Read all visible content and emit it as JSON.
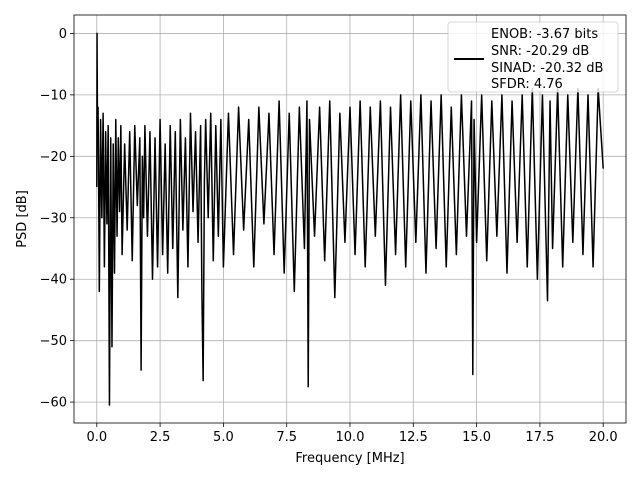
{
  "chart_data": {
    "type": "line",
    "title": "",
    "xlabel": "Frequency [MHz]",
    "ylabel": "PSD [dB]",
    "xlim": [
      -0.9,
      20.9
    ],
    "ylim": [
      -63.4,
      3.0
    ],
    "xticks": [
      0.0,
      2.5,
      5.0,
      7.5,
      10.0,
      12.5,
      15.0,
      17.5,
      20.0
    ],
    "xtick_labels": [
      "0.0",
      "2.5",
      "5.0",
      "7.5",
      "10.0",
      "12.5",
      "15.0",
      "17.5",
      "20.0"
    ],
    "yticks": [
      0,
      -10,
      -20,
      -30,
      -40,
      -50,
      -60
    ],
    "ytick_labels": [
      "0",
      "−10",
      "−20",
      "−30",
      "−40",
      "−50",
      "−60"
    ],
    "grid": true,
    "legend_position": "upper right",
    "line_color": "#000000",
    "series": [
      {
        "name": "",
        "x": [
          0.0,
          0.01,
          0.03,
          0.05,
          0.07,
          0.1,
          0.15,
          0.2,
          0.25,
          0.3,
          0.35,
          0.4,
          0.45,
          0.5,
          0.55,
          0.6,
          0.65,
          0.7,
          0.75,
          0.8,
          0.85,
          0.9,
          0.95,
          1.0,
          1.1,
          1.2,
          1.3,
          1.4,
          1.5,
          1.6,
          1.7,
          1.75,
          1.8,
          1.85,
          1.9,
          2.0,
          2.1,
          2.2,
          2.3,
          2.4,
          2.5,
          2.6,
          2.7,
          2.8,
          2.9,
          3.0,
          3.1,
          3.2,
          3.3,
          3.4,
          3.5,
          3.6,
          3.7,
          3.8,
          3.9,
          4.0,
          4.1,
          4.15,
          4.2,
          4.25,
          4.3,
          4.4,
          4.5,
          4.6,
          4.7,
          4.8,
          4.9,
          5.0,
          5.2,
          5.4,
          5.6,
          5.8,
          6.0,
          6.2,
          6.4,
          6.6,
          6.8,
          7.0,
          7.2,
          7.4,
          7.6,
          7.8,
          8.0,
          8.2,
          8.3,
          8.35,
          8.4,
          8.6,
          8.8,
          9.0,
          9.2,
          9.4,
          9.6,
          9.8,
          10.0,
          10.2,
          10.4,
          10.6,
          10.8,
          11.0,
          11.2,
          11.4,
          11.6,
          11.8,
          12.0,
          12.2,
          12.4,
          12.6,
          12.8,
          13.0,
          13.2,
          13.4,
          13.6,
          13.8,
          14.0,
          14.2,
          14.4,
          14.6,
          14.8,
          14.85,
          14.9,
          15.0,
          15.2,
          15.4,
          15.6,
          15.8,
          16.0,
          16.2,
          16.4,
          16.6,
          16.8,
          17.0,
          17.2,
          17.4,
          17.6,
          17.8,
          17.9,
          18.0,
          18.2,
          18.4,
          18.6,
          18.8,
          19.0,
          19.2,
          19.4,
          19.6,
          19.8,
          20.0
        ],
        "y": [
          -25.0,
          0.0,
          -18.0,
          -12.0,
          -22.0,
          -42.0,
          -14.0,
          -30.0,
          -13.0,
          -38.0,
          -16.0,
          -31.0,
          -15.0,
          -60.5,
          -17.0,
          -51.0,
          -18.0,
          -39.0,
          -14.0,
          -33.0,
          -17.0,
          -29.0,
          -15.0,
          -36.0,
          -18.0,
          -32.0,
          -16.0,
          -37.0,
          -15.0,
          -28.0,
          -17.0,
          -54.8,
          -20.0,
          -30.0,
          -15.0,
          -33.0,
          -16.0,
          -40.0,
          -17.0,
          -38.0,
          -14.0,
          -36.0,
          -18.0,
          -39.0,
          -15.0,
          -35.0,
          -16.0,
          -43.0,
          -14.0,
          -32.0,
          -17.0,
          -38.0,
          -13.0,
          -29.0,
          -16.0,
          -34.0,
          -15.0,
          -42.0,
          -56.5,
          -24.0,
          -14.0,
          -30.0,
          -13.0,
          -37.0,
          -15.0,
          -33.0,
          -14.0,
          -38.0,
          -13.0,
          -36.0,
          -12.0,
          -32.0,
          -14.0,
          -38.0,
          -12.0,
          -31.0,
          -13.0,
          -36.0,
          -11.0,
          -39.0,
          -13.0,
          -42.0,
          -12.0,
          -35.0,
          -11.0,
          -57.5,
          -14.0,
          -33.0,
          -12.0,
          -37.0,
          -11.0,
          -43.0,
          -13.0,
          -34.0,
          -12.0,
          -36.0,
          -11.0,
          -38.0,
          -12.0,
          -33.0,
          -11.0,
          -41.0,
          -12.0,
          -36.0,
          -10.0,
          -38.0,
          -11.0,
          -34.0,
          -10.0,
          -39.0,
          -11.0,
          -35.0,
          -10.0,
          -38.0,
          -12.0,
          -36.0,
          -10.0,
          -33.0,
          -11.0,
          -55.5,
          -14.0,
          -34.0,
          -10.0,
          -37.0,
          -11.0,
          -33.0,
          -10.0,
          -39.0,
          -11.0,
          -34.0,
          -10.0,
          -38.0,
          -9.0,
          -40.0,
          -10.0,
          -43.5,
          -11.0,
          -35.0,
          -9.0,
          -38.0,
          -10.0,
          -34.0,
          -9.0,
          -36.0,
          -10.0,
          -38.0,
          -9.0,
          -22.0
        ]
      }
    ],
    "legend": {
      "lines": [
        "ENOB: -3.67 bits",
        "SNR: -20.29 dB",
        "SINAD: -20.32 dB",
        "SFDR: 4.76"
      ]
    }
  }
}
